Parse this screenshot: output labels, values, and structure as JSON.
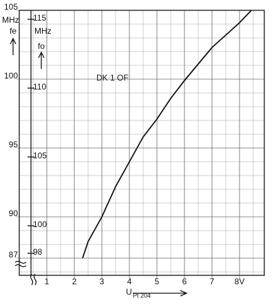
{
  "chart_data": {
    "type": "line",
    "annotation": "DK 1 OF",
    "ylabel": "fe",
    "yunit": "MHz",
    "y2label": "fo",
    "y2unit": "MHz",
    "xlabel": "U",
    "xlabel_sub": "Pt 204",
    "x": [
      2.3,
      2.5,
      3,
      3.5,
      4,
      4.5,
      5,
      5.5,
      6,
      6.5,
      7,
      7.5,
      8,
      8.43
    ],
    "series": [
      {
        "color": "#111111",
        "values": [
          87,
          88.2,
          90,
          92.2,
          94,
          95.8,
          97.1,
          98.6,
          99.9,
          101.1,
          102.3,
          103.2,
          104.1,
          105
        ]
      }
    ],
    "xlim": [
      0,
      8.9
    ],
    "xticks": [
      1,
      2,
      3,
      4,
      5,
      6,
      7,
      {
        "value": 8,
        "label": "8V"
      }
    ],
    "ylim": [
      85.75,
      105
    ],
    "yticks": [
      87,
      90,
      95,
      100,
      105
    ],
    "y2lim": [
      96.4,
      115.65
    ],
    "y2ticks": [
      98,
      100,
      105,
      110,
      115
    ],
    "grid": true
  }
}
